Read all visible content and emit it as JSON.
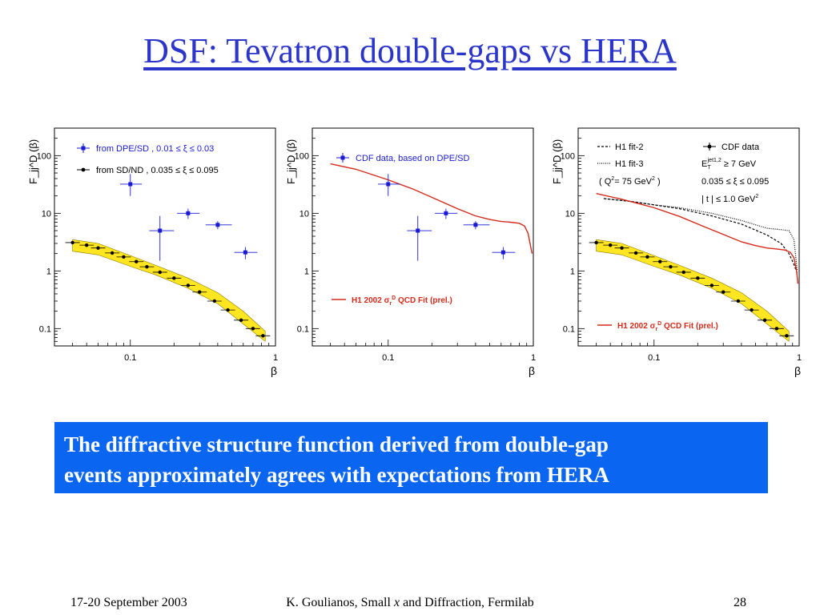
{
  "title": "DSF: Tevatron double-gaps vs HERA",
  "caption": {
    "line1": "The diffractive structure function derived from double-gap",
    "line2": "events approximately agrees with expectations from HERA"
  },
  "footer": {
    "date": "17-20 September 2003",
    "author_pre": "K. Goulianos, Small ",
    "author_x": "x",
    "author_post": " and Diffraction, Fermilab",
    "page": "28"
  },
  "colors": {
    "title": "#2b35c9",
    "caption_bg": "#0a66f0",
    "blue_points": "#1a1ad6",
    "fit_red": "#d42a1a",
    "band_yellow": "#ffe620"
  },
  "chart_data": [
    {
      "type": "scatter",
      "xlog": true,
      "ylog": true,
      "xlim": [
        0.03,
        1.0
      ],
      "ylim": [
        0.05,
        300
      ],
      "xticks": [
        "0.1",
        "1"
      ],
      "yticks": [
        "100",
        "10",
        "1",
        "0.1"
      ],
      "xlabel": "β",
      "ylabel": "F_jj^D (β)",
      "legend_position": "top-left",
      "series": [
        {
          "name": "from DPE/SD ,   0.01 ≤ ξ ≤ 0.03",
          "color": "#1a1ad6",
          "marker": "square",
          "x": [
            0.1,
            0.16,
            0.25,
            0.4,
            0.62
          ],
          "y": [
            32,
            5,
            10,
            6.3,
            2.1
          ],
          "yerr_low": [
            20,
            1.5,
            8,
            5.3,
            1.6
          ],
          "yerr_high": [
            48,
            9,
            12,
            7.3,
            2.6
          ],
          "xerr": [
            [
              0.085,
              0.12
            ],
            [
              0.135,
              0.2
            ],
            [
              0.21,
              0.3
            ],
            [
              0.33,
              0.5
            ],
            [
              0.52,
              0.75
            ]
          ]
        },
        {
          "name": "from  SD/ND ,  0.035 ≤ ξ ≤ 0.095",
          "color": "#000000",
          "marker": "dot",
          "x": [
            0.04,
            0.05,
            0.06,
            0.075,
            0.09,
            0.11,
            0.13,
            0.16,
            0.2,
            0.25,
            0.3,
            0.38,
            0.47,
            0.58,
            0.7,
            0.82
          ],
          "y": [
            3.1,
            2.8,
            2.5,
            2.05,
            1.75,
            1.45,
            1.18,
            0.95,
            0.75,
            0.56,
            0.43,
            0.3,
            0.21,
            0.14,
            0.1,
            0.075
          ]
        }
      ],
      "band": {
        "color": "#ffe620",
        "x": [
          0.04,
          0.06,
          0.1,
          0.15,
          0.25,
          0.4,
          0.6,
          0.85
        ],
        "low": [
          2.2,
          1.9,
          1.2,
          0.85,
          0.5,
          0.27,
          0.12,
          0.06
        ],
        "high": [
          3.5,
          3.0,
          1.85,
          1.25,
          0.75,
          0.42,
          0.2,
          0.09
        ]
      }
    },
    {
      "type": "scatter",
      "xlog": true,
      "ylog": true,
      "xlim": [
        0.03,
        1.0
      ],
      "ylim": [
        0.05,
        300
      ],
      "xticks": [
        "0.1",
        "1"
      ],
      "yticks": [
        "100",
        "10",
        "1",
        "0.1"
      ],
      "xlabel": "β",
      "ylabel": "F_jj^D (β)",
      "series": [
        {
          "name": "CDF data, based on DPE/SD",
          "color": "#1a1ad6",
          "marker": "square",
          "x": [
            0.1,
            0.16,
            0.25,
            0.4,
            0.62
          ],
          "y": [
            32,
            5,
            10,
            6.3,
            2.1
          ],
          "yerr_low": [
            20,
            1.5,
            8,
            5.3,
            1.6
          ],
          "yerr_high": [
            48,
            9,
            12,
            7.3,
            2.6
          ],
          "xerr": [
            [
              0.085,
              0.12
            ],
            [
              0.135,
              0.2
            ],
            [
              0.21,
              0.3
            ],
            [
              0.33,
              0.5
            ],
            [
              0.52,
              0.75
            ]
          ]
        }
      ],
      "lines": [
        {
          "name": "H1 2002 σ_r^D QCD Fit (prel.)",
          "color": "#d42a1a",
          "style": "solid",
          "x": [
            0.04,
            0.06,
            0.1,
            0.15,
            0.22,
            0.3,
            0.4,
            0.5,
            0.6,
            0.7,
            0.8,
            0.87,
            0.92,
            0.96,
            0.98
          ],
          "y": [
            72,
            58,
            38,
            26,
            17,
            12,
            9,
            7.8,
            7.2,
            7.0,
            6.7,
            6.0,
            4.5,
            2.6,
            2.0
          ]
        }
      ]
    },
    {
      "type": "scatter",
      "xlog": true,
      "ylog": true,
      "xlim": [
        0.03,
        1.0
      ],
      "ylim": [
        0.05,
        300
      ],
      "xticks": [
        "0.1",
        "1"
      ],
      "yticks": [
        "100",
        "10",
        "1",
        "0.1"
      ],
      "xlabel": "β",
      "ylabel": "F_jj^D (β)",
      "legend_left": [
        "H1 fit-2",
        "H1 fit-3",
        "( Q²= 75 GeV² )"
      ],
      "legend_right": [
        "CDF data",
        "E_T^jet1,2 ≥ 7 GeV",
        "0.035 ≤ ξ ≤ 0.095",
        "| t | ≤ 1.0 GeV²"
      ],
      "series": [
        {
          "name": "CDF data",
          "color": "#000000",
          "marker": "dot",
          "x": [
            0.04,
            0.05,
            0.06,
            0.075,
            0.09,
            0.11,
            0.13,
            0.16,
            0.2,
            0.25,
            0.3,
            0.38,
            0.47,
            0.58,
            0.7,
            0.82
          ],
          "y": [
            3.1,
            2.8,
            2.5,
            2.05,
            1.75,
            1.45,
            1.18,
            0.95,
            0.75,
            0.56,
            0.43,
            0.3,
            0.21,
            0.14,
            0.1,
            0.075
          ]
        }
      ],
      "band": {
        "color": "#ffe620",
        "x": [
          0.04,
          0.06,
          0.1,
          0.15,
          0.25,
          0.4,
          0.6,
          0.85
        ],
        "low": [
          2.2,
          1.9,
          1.2,
          0.85,
          0.5,
          0.27,
          0.12,
          0.06
        ],
        "high": [
          3.5,
          3.0,
          1.85,
          1.25,
          0.75,
          0.42,
          0.2,
          0.09
        ]
      },
      "lines": [
        {
          "name": "H1 fit-2",
          "color": "#000000",
          "style": "dashed",
          "x": [
            0.045,
            0.07,
            0.1,
            0.15,
            0.25,
            0.4,
            0.6,
            0.75,
            0.85,
            0.92,
            0.97
          ],
          "y": [
            18,
            16,
            14,
            12,
            9,
            6.5,
            4.2,
            3.0,
            2.0,
            1.3,
            0.9
          ]
        },
        {
          "name": "H1 fit-3",
          "color": "#000000",
          "style": "dotted",
          "x": [
            0.045,
            0.07,
            0.1,
            0.15,
            0.25,
            0.4,
            0.6,
            0.75,
            0.85,
            0.92,
            0.97
          ],
          "y": [
            18,
            16,
            14,
            12.5,
            10,
            7.5,
            5.5,
            5.2,
            5.0,
            3.5,
            1.0
          ]
        },
        {
          "name": "H1 2002 σ_r^D QCD Fit (prel.)",
          "color": "#d42a1a",
          "style": "solid",
          "x": [
            0.04,
            0.06,
            0.1,
            0.15,
            0.22,
            0.3,
            0.4,
            0.5,
            0.6,
            0.7,
            0.8,
            0.87,
            0.92,
            0.96,
            0.98
          ],
          "y": [
            22,
            17.5,
            12.5,
            8.8,
            5.9,
            4.3,
            3.2,
            2.75,
            2.5,
            2.4,
            2.3,
            2.1,
            1.7,
            1.0,
            0.6
          ]
        }
      ]
    }
  ]
}
